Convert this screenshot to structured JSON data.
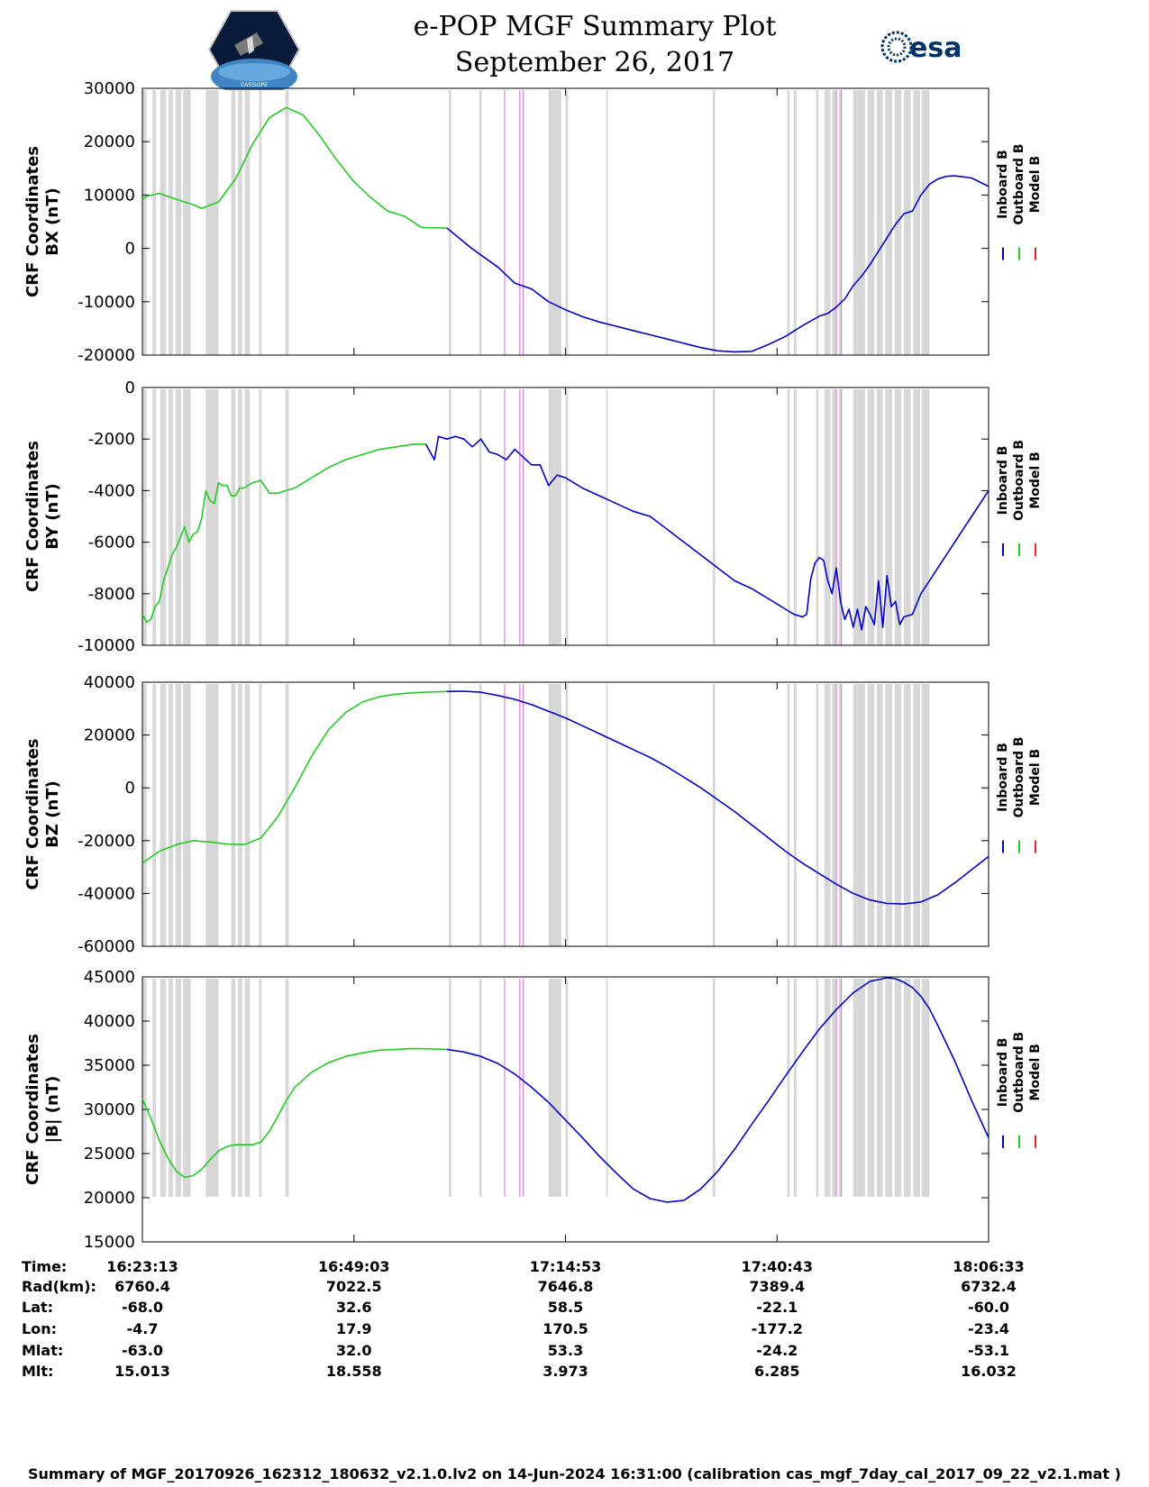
{
  "header": {
    "title": "e-POP MGF Summary Plot",
    "date": "September 26, 2017",
    "left_logo_text": "CASSIOPE",
    "right_logo_text": "esa"
  },
  "colors": {
    "inboard": "#0000cc",
    "outboard": "#22cc22",
    "model": "#ee2222",
    "gray_band": "#d7d7d7",
    "magenta_line": "#e080e0"
  },
  "legend": {
    "inboard": "Inboard B",
    "outboard": "Outboard B",
    "model": "Model B"
  },
  "chart_data": [
    {
      "type": "line",
      "id": "bx",
      "ylabel_line1": "CRF Coordinates",
      "ylabel_line2": "BX (nT)",
      "ylim": [
        -20000,
        30000
      ],
      "yticks": [
        30000,
        20000,
        10000,
        0,
        -10000,
        -20000
      ],
      "ytick_labels": [
        "30000",
        "20000",
        "10000",
        "0",
        "-10000",
        "-20000"
      ],
      "series": [
        {
          "name": "Outboard B",
          "x": [
            0,
            0.5,
            2,
            4,
            6,
            7,
            9,
            11,
            13,
            15,
            17,
            19,
            21,
            23,
            25,
            27,
            29,
            31,
            33,
            36
          ],
          "values": [
            9200,
            9800,
            10300,
            9200,
            8200,
            7500,
            8700,
            13000,
            19500,
            24500,
            26400,
            25000,
            21000,
            16500,
            12500,
            9500,
            7000,
            6000,
            3900,
            3800
          ]
        },
        {
          "name": "Inboard B",
          "x": [
            36,
            39,
            42,
            44,
            46,
            48,
            50,
            52,
            54,
            56,
            58,
            60,
            62,
            64,
            66,
            68,
            70,
            72,
            74,
            76,
            78,
            80,
            81,
            82,
            83,
            84,
            85,
            86,
            87,
            88,
            89,
            90,
            91,
            92,
            93,
            94,
            95,
            96,
            98,
            100
          ],
          "values": [
            3800,
            -100,
            -3500,
            -6500,
            -7600,
            -10000,
            -11500,
            -12800,
            -13800,
            -14600,
            -15400,
            -16200,
            -17000,
            -17800,
            -18600,
            -19200,
            -19400,
            -19300,
            -18000,
            -16500,
            -14500,
            -12700,
            -12200,
            -11000,
            -9500,
            -7000,
            -5200,
            -3000,
            -500,
            2000,
            4500,
            6500,
            7000,
            10000,
            12000,
            13000,
            13500,
            13600,
            13200,
            11600
          ]
        }
      ]
    },
    {
      "type": "line",
      "id": "by",
      "ylabel_line1": "CRF Coordinates",
      "ylabel_line2": "BY (nT)",
      "ylim": [
        -10000,
        0
      ],
      "yticks": [
        0,
        -2000,
        -4000,
        -6000,
        -8000,
        -10000
      ],
      "ytick_labels": [
        "0",
        "-2000",
        "-4000",
        "-6000",
        "-8000",
        "-10000"
      ],
      "series": [
        {
          "name": "Outboard B",
          "x": [
            0,
            0.5,
            1,
            1.5,
            2,
            2.5,
            3,
            3.5,
            4,
            4.5,
            5,
            5.5,
            6,
            6.5,
            7,
            7.5,
            8,
            8.5,
            9,
            9.5,
            10,
            10.5,
            11,
            11.5,
            12,
            13,
            14,
            15,
            16,
            17,
            18,
            19,
            20,
            22,
            24,
            26,
            28,
            30,
            32,
            33.5
          ],
          "values": [
            -8800,
            -9100,
            -9000,
            -8500,
            -8300,
            -7500,
            -7000,
            -6500,
            -6200,
            -5800,
            -5400,
            -6000,
            -5700,
            -5600,
            -5100,
            -4000,
            -4400,
            -4500,
            -3700,
            -3800,
            -3800,
            -4200,
            -4200,
            -3900,
            -3900,
            -3700,
            -3600,
            -4100,
            -4100,
            -4000,
            -3900,
            -3700,
            -3500,
            -3100,
            -2800,
            -2600,
            -2400,
            -2300,
            -2200,
            -2200
          ]
        },
        {
          "name": "Inboard B",
          "x": [
            33.5,
            34.5,
            35,
            36,
            37,
            38,
            39,
            40,
            41,
            42,
            43,
            44,
            45,
            46,
            47,
            48,
            49,
            50,
            52,
            54,
            56,
            58,
            60,
            62,
            64,
            66,
            68,
            70,
            72,
            73,
            74,
            75,
            76,
            77,
            78,
            78.5,
            79,
            79.5,
            80,
            80.5,
            81,
            81.5,
            82,
            82.5,
            83,
            83.5,
            84,
            84.5,
            85,
            85.5,
            86,
            86.5,
            87,
            87.5,
            88,
            88.5,
            89,
            89.5,
            90,
            91,
            92,
            94,
            96,
            98,
            100
          ],
          "values": [
            -2200,
            -2800,
            -1900,
            -2000,
            -1900,
            -2000,
            -2300,
            -2000,
            -2500,
            -2600,
            -2800,
            -2400,
            -2700,
            -3000,
            -3000,
            -3800,
            -3400,
            -3500,
            -3900,
            -4200,
            -4500,
            -4800,
            -5000,
            -5500,
            -6000,
            -6500,
            -7000,
            -7500,
            -7800,
            -8000,
            -8200,
            -8400,
            -8600,
            -8800,
            -8900,
            -8800,
            -7400,
            -6800,
            -6600,
            -6700,
            -7500,
            -8000,
            -7000,
            -8300,
            -9000,
            -8600,
            -9300,
            -8600,
            -9400,
            -8500,
            -8800,
            -9200,
            -7500,
            -9300,
            -7300,
            -8500,
            -8300,
            -9200,
            -8900,
            -8800,
            -8000,
            -7000,
            -6000,
            -5000,
            -4000
          ]
        }
      ]
    },
    {
      "type": "line",
      "id": "bz",
      "ylabel_line1": "CRF Coordinates",
      "ylabel_line2": "BZ (nT)",
      "ylim": [
        -60000,
        40000
      ],
      "yticks": [
        40000,
        20000,
        0,
        -20000,
        -40000,
        -60000
      ],
      "ytick_labels": [
        "40000",
        "20000",
        "0",
        "-20000",
        "-40000",
        "-60000"
      ],
      "series": [
        {
          "name": "Outboard B",
          "x": [
            0,
            2,
            4,
            6,
            8,
            10,
            12,
            14,
            16,
            18,
            20,
            22,
            24,
            26,
            28,
            30,
            32,
            34,
            36
          ],
          "values": [
            -28500,
            -24000,
            -21500,
            -20000,
            -20500,
            -21300,
            -21500,
            -19000,
            -11000,
            0,
            12000,
            22000,
            28500,
            32500,
            34500,
            35500,
            36000,
            36300,
            36500
          ]
        },
        {
          "name": "Inboard B",
          "x": [
            36,
            38,
            40,
            42,
            44,
            46,
            48,
            50,
            52,
            54,
            56,
            58,
            60,
            62,
            64,
            66,
            68,
            70,
            72,
            74,
            76,
            78,
            80,
            82,
            84,
            86,
            88,
            90,
            92,
            94,
            96,
            98,
            100
          ],
          "values": [
            36500,
            36600,
            36200,
            35000,
            33500,
            31500,
            29000,
            26500,
            23500,
            20500,
            17500,
            14500,
            11500,
            8000,
            4000,
            0,
            -4500,
            -9000,
            -14000,
            -19000,
            -24000,
            -28500,
            -32500,
            -36500,
            -40000,
            -42500,
            -43800,
            -44000,
            -43200,
            -40500,
            -36000,
            -31000,
            -26000
          ]
        }
      ]
    },
    {
      "type": "line",
      "id": "btot",
      "ylabel_line1": "CRF Coordinates",
      "ylabel_line2": "|B| (nT)",
      "ylim": [
        15000,
        45000
      ],
      "yticks": [
        45000,
        40000,
        35000,
        30000,
        25000,
        20000,
        15000
      ],
      "ytick_labels": [
        "45000",
        "40000",
        "35000",
        "30000",
        "25000",
        "20000",
        "15000"
      ],
      "series": [
        {
          "name": "Outboard B",
          "x": [
            0,
            1,
            2,
            3,
            4,
            5,
            6,
            7,
            8,
            9,
            10,
            11,
            12,
            13,
            14,
            15,
            16,
            17,
            18,
            20,
            22,
            24,
            26,
            28,
            30,
            32,
            34,
            36
          ],
          "values": [
            31200,
            29000,
            26500,
            24500,
            23000,
            22300,
            22500,
            23200,
            24300,
            25300,
            25800,
            26000,
            26000,
            26000,
            26300,
            27500,
            29200,
            31000,
            32500,
            34200,
            35300,
            36000,
            36400,
            36700,
            36800,
            36900,
            36850,
            36800
          ]
        },
        {
          "name": "Inboard B",
          "x": [
            36,
            38,
            40,
            42,
            44,
            46,
            48,
            50,
            52,
            54,
            56,
            58,
            60,
            62,
            64,
            66,
            68,
            70,
            72,
            74,
            76,
            78,
            80,
            82,
            84,
            86,
            88,
            89,
            90,
            91,
            92,
            93,
            94,
            96,
            98,
            100
          ],
          "values": [
            36800,
            36500,
            36000,
            35200,
            34000,
            32500,
            30800,
            28800,
            26800,
            24700,
            22800,
            21000,
            19900,
            19500,
            19700,
            21000,
            23000,
            25500,
            28300,
            31000,
            33800,
            36500,
            39100,
            41300,
            43200,
            44500,
            44900,
            44800,
            44400,
            43800,
            42800,
            41400,
            39500,
            35500,
            31000,
            26800
          ]
        }
      ]
    }
  ],
  "gray_bands": [
    [
      0,
      0.5
    ],
    [
      1.2,
      1.6
    ],
    [
      2.1,
      2.8
    ],
    [
      3.1,
      3.6
    ],
    [
      3.9,
      4.6
    ],
    [
      4.8,
      5.7
    ],
    [
      7.5,
      9.0
    ],
    [
      10.5,
      11.0
    ],
    [
      11.3,
      11.8
    ],
    [
      12.1,
      12.7
    ],
    [
      13.8,
      14.1
    ],
    [
      16.9,
      17.3
    ],
    [
      36.2,
      36.5
    ],
    [
      39.8,
      40.1
    ],
    [
      48.0,
      49.5
    ],
    [
      50.0,
      50.3
    ],
    [
      54.8,
      55.0
    ],
    [
      67.4,
      67.7
    ],
    [
      76.2,
      76.5
    ],
    [
      77.0,
      77.3
    ],
    [
      79.6,
      79.9
    ],
    [
      80.6,
      81.3
    ],
    [
      81.5,
      82.0
    ],
    [
      82.3,
      82.6
    ],
    [
      84.0,
      85.4
    ],
    [
      85.7,
      86.5
    ],
    [
      86.8,
      87.5
    ],
    [
      87.8,
      88.6
    ],
    [
      88.9,
      89.7
    ],
    [
      90.0,
      90.8
    ],
    [
      91.1,
      91.9
    ],
    [
      92.1,
      93.0
    ]
  ],
  "magenta_lines": [
    42.8,
    44.6,
    45.0,
    82.0,
    82.6
  ],
  "footer": {
    "rows": [
      {
        "label": "Time:",
        "values": [
          "16:23:13",
          "16:49:03",
          "17:14:53",
          "17:40:43",
          "18:06:33"
        ]
      },
      {
        "label": "Rad(km):",
        "values": [
          "6760.4",
          "7022.5",
          "7646.8",
          "7389.4",
          "6732.4"
        ]
      },
      {
        "label": "Lat:",
        "values": [
          "-68.0",
          "32.6",
          "58.5",
          "-22.1",
          "-60.0"
        ]
      },
      {
        "label": "Lon:",
        "values": [
          "-4.7",
          "17.9",
          "170.5",
          "-177.2",
          "-23.4"
        ]
      },
      {
        "label": "Mlat:",
        "values": [
          "-63.0",
          "32.0",
          "53.3",
          "-24.2",
          "-53.1"
        ]
      },
      {
        "label": "Mlt:",
        "values": [
          "15.013",
          "18.558",
          "3.973",
          "6.285",
          "16.032"
        ]
      }
    ],
    "summary": "Summary of MGF_20170926_162312_180632_v2.1.0.lv2 on 14-Jun-2024 16:31:00 (calibration cas_mgf_7day_cal_2017_09_22_v2.1.mat )"
  }
}
